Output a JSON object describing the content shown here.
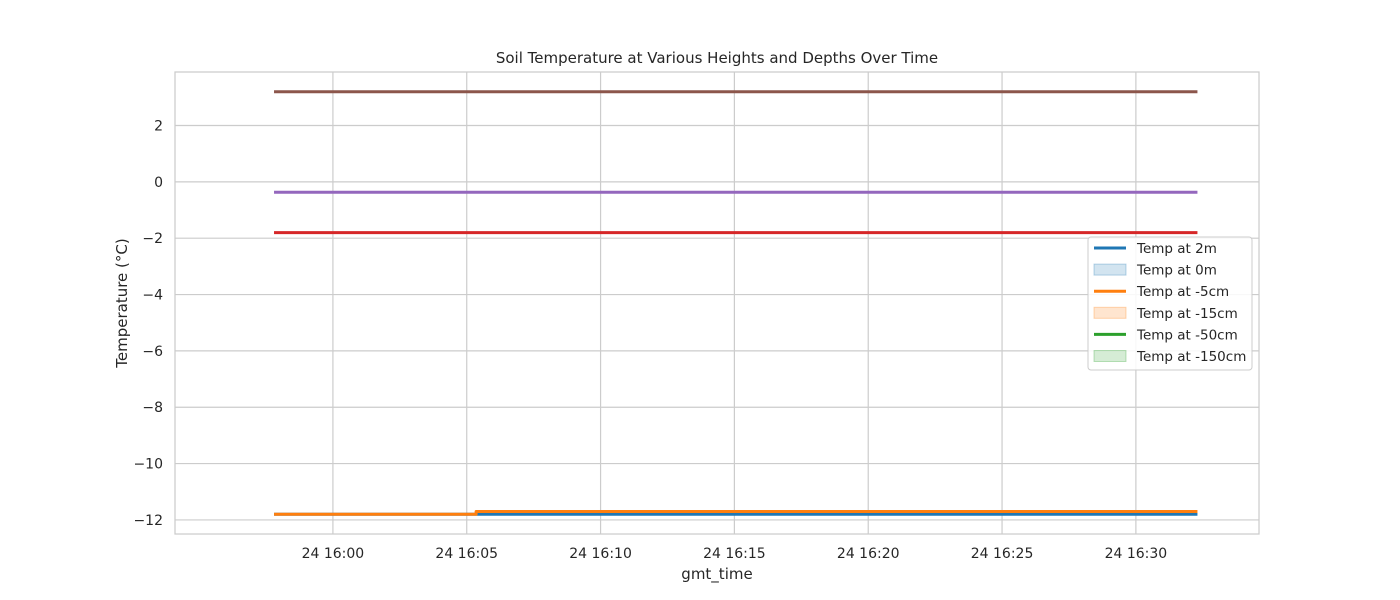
{
  "chart_data": {
    "type": "line",
    "title": "Soil Temperature at Various Heights and Depths Over Time",
    "xlabel": "gmt_time",
    "ylabel": "Temperature (°C)",
    "x_tick_labels": [
      "24 16:00",
      "24 16:05",
      "24 16:10",
      "24 16:15",
      "24 16:20",
      "24 16:25",
      "24 16:30"
    ],
    "x_tick_minutes": [
      0,
      5,
      10,
      15,
      20,
      25,
      30
    ],
    "xlim_minutes": [
      -5.9,
      34.6
    ],
    "y_ticks": [
      2,
      0,
      -2,
      -4,
      -6,
      -8,
      -10,
      -12
    ],
    "y_tick_labels": [
      "2",
      "0",
      "−2",
      "−4",
      "−6",
      "−8",
      "−10",
      "−12"
    ],
    "ylim": [
      -12.5,
      3.9
    ],
    "grid": true,
    "legend_position": "center-right",
    "series": [
      {
        "name": "Temp at 2m",
        "color": "#1f77b4",
        "legend_style": "line",
        "x_minutes": [
          -2.2,
          32.3
        ],
        "y": [
          -11.8,
          -11.8
        ]
      },
      {
        "name": "Temp at -5cm",
        "color": "#ff7f0e",
        "legend_style": "line",
        "x_minutes": [
          -2.2,
          5.35,
          5.35,
          32.3
        ],
        "y": [
          -11.8,
          -11.8,
          -11.7,
          -11.7
        ]
      },
      {
        "name": "",
        "color": "#d62728",
        "x_minutes": [
          -2.2,
          32.3
        ],
        "y": [
          -1.8,
          -1.8
        ]
      },
      {
        "name": "",
        "color": "#9467bd",
        "x_minutes": [
          -2.2,
          32.3
        ],
        "y": [
          -0.37,
          -0.37
        ]
      },
      {
        "name": "",
        "color": "#8c564b",
        "x_minutes": [
          -2.2,
          32.3
        ],
        "y": [
          3.2,
          3.2
        ]
      }
    ],
    "legend": [
      {
        "label": "Temp at 2m",
        "style": "line",
        "color": "#1f77b4"
      },
      {
        "label": "Temp at 0m",
        "style": "patch",
        "color": "#1f77b4"
      },
      {
        "label": "Temp at -5cm",
        "style": "line",
        "color": "#ff7f0e"
      },
      {
        "label": "Temp at -15cm",
        "style": "patch",
        "color": "#ff7f0e"
      },
      {
        "label": "Temp at -50cm",
        "style": "line",
        "color": "#2ca02c"
      },
      {
        "label": "Temp at -150cm",
        "style": "patch",
        "color": "#2ca02c"
      }
    ]
  }
}
